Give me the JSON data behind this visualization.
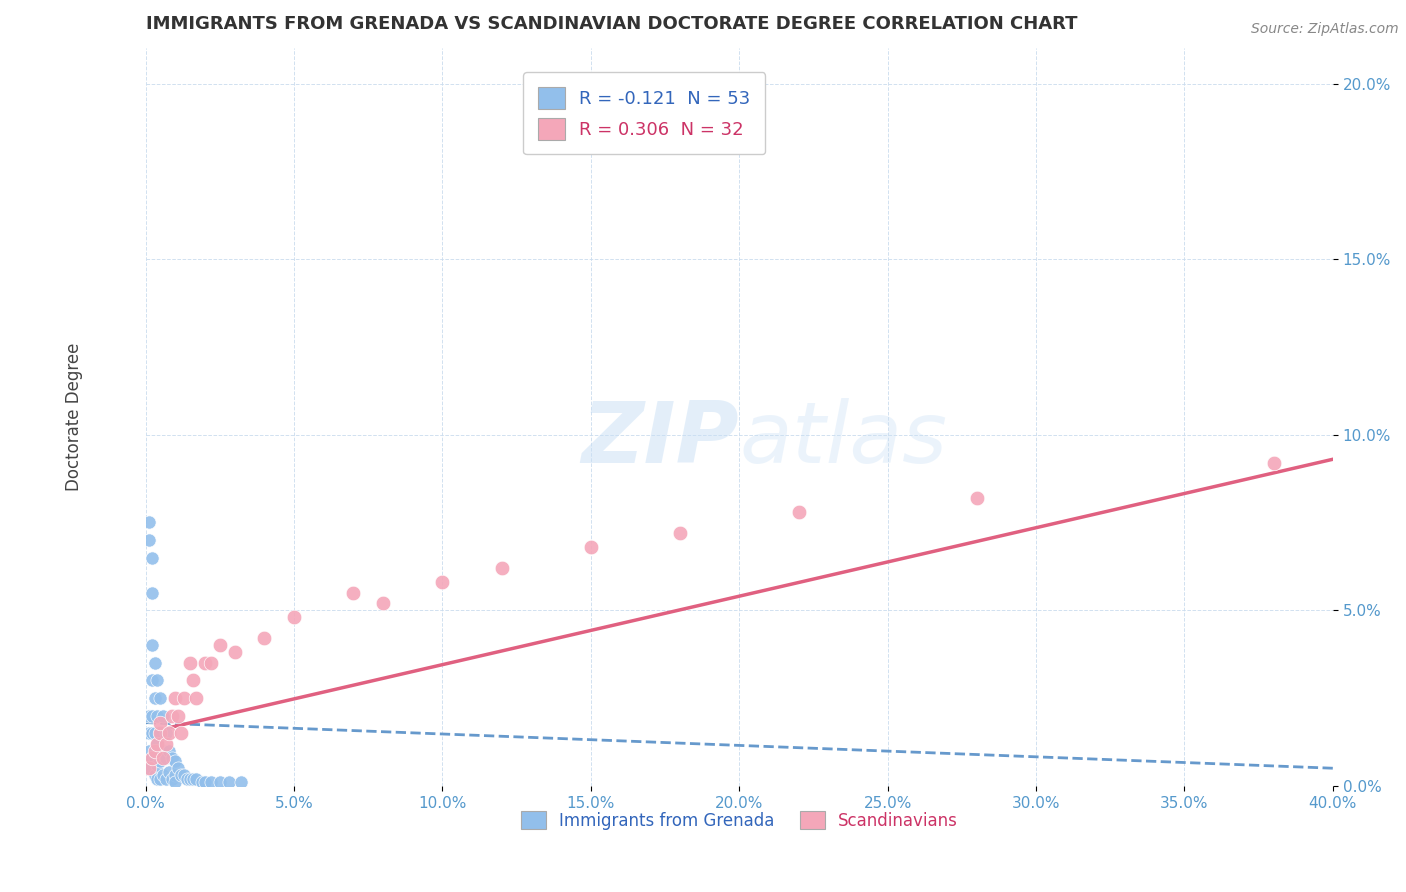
{
  "title": "IMMIGRANTS FROM GRENADA VS SCANDINAVIAN DOCTORATE DEGREE CORRELATION CHART",
  "source": "Source: ZipAtlas.com",
  "ylabel": "Doctorate Degree",
  "watermark": "ZIPatlas",
  "xlim": [
    0.0,
    0.4
  ],
  "ylim": [
    0.0,
    0.21
  ],
  "xticks": [
    0.0,
    0.05,
    0.1,
    0.15,
    0.2,
    0.25,
    0.3,
    0.35,
    0.4
  ],
  "yticks": [
    0.0,
    0.05,
    0.1,
    0.15,
    0.2
  ],
  "legend_labels": [
    "Immigrants from Grenada",
    "Scandinavians"
  ],
  "blue_color": "#92BFEB",
  "pink_color": "#F4A7B9",
  "blue_line_color": "#6699CC",
  "pink_line_color": "#E06080",
  "R_blue": -0.121,
  "N_blue": 53,
  "R_pink": 0.306,
  "N_pink": 32,
  "blue_scatter_x": [
    0.001,
    0.001,
    0.001,
    0.001,
    0.001,
    0.001,
    0.002,
    0.002,
    0.002,
    0.002,
    0.002,
    0.002,
    0.002,
    0.003,
    0.003,
    0.003,
    0.003,
    0.003,
    0.004,
    0.004,
    0.004,
    0.004,
    0.004,
    0.005,
    0.005,
    0.005,
    0.005,
    0.006,
    0.006,
    0.006,
    0.007,
    0.007,
    0.007,
    0.008,
    0.008,
    0.009,
    0.009,
    0.01,
    0.01,
    0.01,
    0.011,
    0.012,
    0.013,
    0.014,
    0.015,
    0.016,
    0.017,
    0.019,
    0.02,
    0.022,
    0.025,
    0.028,
    0.032
  ],
  "blue_scatter_y": [
    0.075,
    0.07,
    0.02,
    0.015,
    0.01,
    0.005,
    0.065,
    0.055,
    0.04,
    0.03,
    0.02,
    0.015,
    0.008,
    0.035,
    0.025,
    0.015,
    0.008,
    0.003,
    0.03,
    0.02,
    0.012,
    0.006,
    0.002,
    0.025,
    0.015,
    0.007,
    0.002,
    0.02,
    0.01,
    0.003,
    0.015,
    0.008,
    0.002,
    0.01,
    0.004,
    0.008,
    0.002,
    0.007,
    0.003,
    0.001,
    0.005,
    0.003,
    0.003,
    0.002,
    0.002,
    0.002,
    0.002,
    0.001,
    0.001,
    0.001,
    0.001,
    0.001,
    0.001
  ],
  "pink_scatter_x": [
    0.001,
    0.002,
    0.003,
    0.004,
    0.005,
    0.005,
    0.006,
    0.007,
    0.008,
    0.009,
    0.01,
    0.011,
    0.012,
    0.013,
    0.015,
    0.016,
    0.017,
    0.02,
    0.022,
    0.025,
    0.03,
    0.04,
    0.05,
    0.07,
    0.08,
    0.1,
    0.12,
    0.15,
    0.18,
    0.22,
    0.28,
    0.38
  ],
  "pink_scatter_y": [
    0.005,
    0.008,
    0.01,
    0.012,
    0.015,
    0.018,
    0.008,
    0.012,
    0.015,
    0.02,
    0.025,
    0.02,
    0.015,
    0.025,
    0.035,
    0.03,
    0.025,
    0.035,
    0.035,
    0.04,
    0.038,
    0.042,
    0.048,
    0.055,
    0.052,
    0.058,
    0.062,
    0.068,
    0.072,
    0.078,
    0.082,
    0.092
  ],
  "pink_trendline_x0": 0.0,
  "pink_trendline_y0": 0.015,
  "pink_trendline_x1": 0.4,
  "pink_trendline_y1": 0.093,
  "blue_trendline_x0": 0.0,
  "blue_trendline_y0": 0.018,
  "blue_trendline_x1": 0.4,
  "blue_trendline_y1": 0.005
}
